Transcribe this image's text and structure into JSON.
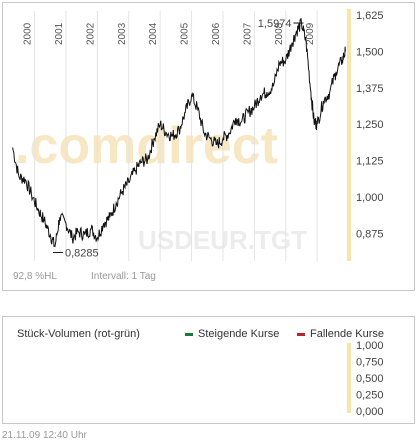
{
  "chart_data": [
    {
      "type": "line",
      "series_label": "USDEUR.TGT",
      "watermark": ".comdirect",
      "x_ticks": [
        "2000",
        "2001",
        "2002",
        "2003",
        "2004",
        "2005",
        "2006",
        "2007",
        "2008",
        "2009"
      ],
      "y_ticks": [
        "1,625",
        "1,500",
        "1,375",
        "1,250",
        "1,125",
        "1,000",
        "0,875"
      ],
      "ylim": [
        0.78,
        1.625
      ],
      "xlim": [
        1999.25,
        2009.95
      ],
      "annotations": {
        "max_label": "1,5974",
        "min_label": "0,8285"
      },
      "x": [
        1999.3,
        1999.5,
        1999.7,
        1999.9,
        2000.1,
        2000.3,
        2000.5,
        2000.65,
        2000.8,
        2001.0,
        2001.2,
        2001.4,
        2001.6,
        2001.8,
        2002.0,
        2002.2,
        2002.4,
        2002.6,
        2002.8,
        2003.0,
        2003.2,
        2003.4,
        2003.6,
        2003.8,
        2004.0,
        2004.2,
        2004.4,
        2004.6,
        2004.8,
        2005.0,
        2005.2,
        2005.4,
        2005.6,
        2005.8,
        2006.0,
        2006.2,
        2006.4,
        2006.6,
        2006.8,
        2007.0,
        2007.2,
        2007.4,
        2007.6,
        2007.8,
        2008.0,
        2008.2,
        2008.35,
        2008.5,
        2008.65,
        2008.8,
        2008.9,
        2009.0,
        2009.2,
        2009.4,
        2009.6,
        2009.8,
        2009.9
      ],
      "y": [
        1.17,
        1.07,
        1.06,
        1.01,
        0.96,
        0.92,
        0.87,
        0.83,
        0.93,
        0.91,
        0.86,
        0.88,
        0.87,
        0.89,
        0.86,
        0.91,
        0.93,
        0.98,
        1.02,
        1.05,
        1.09,
        1.12,
        1.13,
        1.2,
        1.25,
        1.22,
        1.21,
        1.23,
        1.29,
        1.35,
        1.3,
        1.22,
        1.2,
        1.18,
        1.2,
        1.22,
        1.27,
        1.26,
        1.29,
        1.31,
        1.35,
        1.36,
        1.38,
        1.46,
        1.47,
        1.53,
        1.57,
        1.5974,
        1.53,
        1.36,
        1.26,
        1.25,
        1.33,
        1.36,
        1.43,
        1.47,
        1.5
      ]
    },
    {
      "type": "bar",
      "title": "Stück-Volumen (rot-grün)",
      "legend": [
        {
          "label": "Steigende Kurse",
          "color": "#1a7a3a"
        },
        {
          "label": "Fallende Kurse",
          "color": "#c0202a"
        }
      ],
      "y_ticks": [
        "1,000",
        "0,750",
        "0,500",
        "0,250",
        "0,000"
      ],
      "ylim": [
        0,
        1
      ]
    }
  ],
  "footer": {
    "hl": "92,8 %HL",
    "interval": "Intervall: 1 Tag"
  },
  "timestamp": "21.11.09    12:40 Uhr"
}
